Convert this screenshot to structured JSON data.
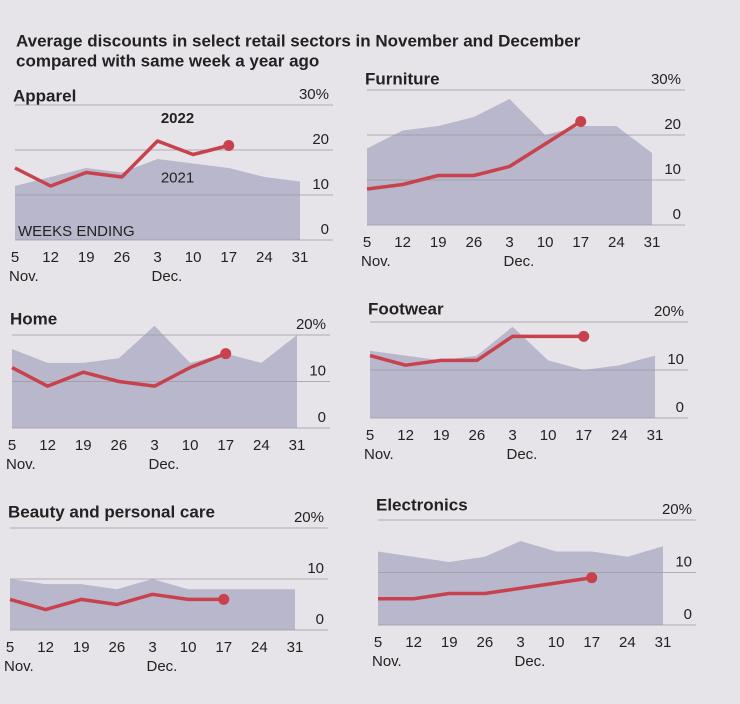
{
  "title": [
    "Average discounts in select retail sectors in November and December",
    "compared with same week a year ago"
  ],
  "chart_data": [
    {
      "type": "line",
      "title": "Apparel",
      "categories": [
        "5",
        "12",
        "19",
        "26",
        "3",
        "10",
        "17",
        "24",
        "31"
      ],
      "x_group_labels": [
        "Nov.",
        null,
        null,
        null,
        "Dec.",
        null,
        null,
        null,
        null
      ],
      "annotation": "WEEKS ENDING",
      "ylim": [
        0,
        30
      ],
      "yticks": [
        0,
        10,
        20,
        {
          "value": 30,
          "label": "30%"
        }
      ],
      "series": [
        {
          "name": "2021",
          "color": "#b9b7cb",
          "values": [
            12,
            14,
            16,
            15,
            18,
            17,
            16,
            14,
            13
          ]
        },
        {
          "name": "2022",
          "color": "#c8424e",
          "values": [
            16,
            12,
            15,
            14,
            22,
            19,
            21,
            null,
            null
          ]
        }
      ]
    },
    {
      "type": "line",
      "title": "Furniture",
      "categories": [
        "5",
        "12",
        "19",
        "26",
        "3",
        "10",
        "17",
        "24",
        "31"
      ],
      "x_group_labels": [
        "Nov.",
        null,
        null,
        null,
        "Dec.",
        null,
        null,
        null,
        null
      ],
      "ylim": [
        0,
        30
      ],
      "yticks": [
        0,
        10,
        20,
        {
          "value": 30,
          "label": "30%"
        }
      ],
      "series": [
        {
          "color": "#b9b7cb",
          "values": [
            17,
            21,
            22,
            24,
            28,
            20,
            22,
            22,
            16
          ]
        },
        {
          "color": "#c8424e",
          "values": [
            8,
            9,
            11,
            11,
            13,
            18,
            23,
            null,
            null
          ]
        }
      ]
    },
    {
      "type": "line",
      "title": "Home",
      "categories": [
        "5",
        "12",
        "19",
        "26",
        "3",
        "10",
        "17",
        "24",
        "31"
      ],
      "x_group_labels": [
        "Nov.",
        null,
        null,
        null,
        "Dec.",
        null,
        null,
        null,
        null
      ],
      "ylim": [
        0,
        20
      ],
      "yticks": [
        0,
        10,
        {
          "value": 20,
          "label": "20%"
        }
      ],
      "series": [
        {
          "color": "#b9b7cb",
          "values": [
            17,
            14,
            14,
            15,
            22,
            14,
            16,
            14,
            20
          ]
        },
        {
          "color": "#c8424e",
          "values": [
            13,
            9,
            12,
            10,
            9,
            13,
            16,
            null,
            null
          ]
        }
      ]
    },
    {
      "type": "line",
      "title": "Footwear",
      "categories": [
        "5",
        "12",
        "19",
        "26",
        "3",
        "10",
        "17",
        "24",
        "31"
      ],
      "x_group_labels": [
        "Nov.",
        null,
        null,
        null,
        "Dec.",
        null,
        null,
        null,
        null
      ],
      "ylim": [
        0,
        20
      ],
      "yticks": [
        0,
        10,
        {
          "value": 20,
          "label": "20%"
        }
      ],
      "series": [
        {
          "color": "#b9b7cb",
          "values": [
            14,
            13,
            12,
            13,
            19,
            12,
            10,
            11,
            13
          ]
        },
        {
          "color": "#c8424e",
          "values": [
            13,
            11,
            12,
            12,
            17,
            17,
            17,
            null,
            null
          ]
        }
      ]
    },
    {
      "type": "line",
      "title": "Beauty and personal care",
      "categories": [
        "5",
        "12",
        "19",
        "26",
        "3",
        "10",
        "17",
        "24",
        "31"
      ],
      "x_group_labels": [
        "Nov.",
        null,
        null,
        null,
        "Dec.",
        null,
        null,
        null,
        null
      ],
      "ylim": [
        0,
        20
      ],
      "yticks": [
        0,
        10,
        {
          "value": 20,
          "label": "20%"
        }
      ],
      "series": [
        {
          "color": "#b9b7cb",
          "values": [
            10,
            9,
            9,
            8,
            10,
            8,
            8,
            8,
            8
          ]
        },
        {
          "color": "#c8424e",
          "values": [
            6,
            4,
            6,
            5,
            7,
            6,
            6,
            null,
            null
          ]
        }
      ]
    },
    {
      "type": "line",
      "title": "Electronics",
      "categories": [
        "5",
        "12",
        "19",
        "26",
        "3",
        "10",
        "17",
        "24",
        "31"
      ],
      "x_group_labels": [
        "Nov.",
        null,
        null,
        null,
        "Dec.",
        null,
        null,
        null,
        null
      ],
      "ylim": [
        0,
        20
      ],
      "yticks": [
        0,
        10,
        {
          "value": 20,
          "label": "20%"
        }
      ],
      "series": [
        {
          "color": "#b9b7cb",
          "values": [
            14,
            13,
            12,
            13,
            16,
            14,
            14,
            13,
            15
          ]
        },
        {
          "color": "#c8424e",
          "values": [
            5,
            5,
            6,
            6,
            7,
            8,
            9,
            null,
            null
          ]
        }
      ]
    }
  ]
}
